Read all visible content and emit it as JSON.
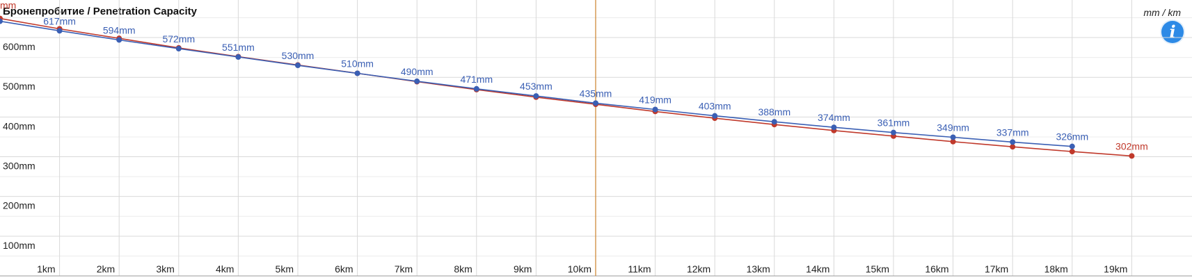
{
  "header": {
    "title": "Бронепробитие / Penetration Capacity",
    "unit": "mm / km"
  },
  "controls": {
    "info_icon": "info-icon",
    "info_glyph": "i"
  },
  "colors": {
    "blue": "#3a5fb4",
    "red": "#c0392b",
    "marker_line": "#d08a3a",
    "grid": "#d9d9d9",
    "grid_minor": "#ececec"
  },
  "chart_data": {
    "type": "line",
    "x_unit": "km",
    "y_unit": "mm",
    "x_ticks": [
      "1km",
      "2km",
      "3km",
      "4km",
      "5km",
      "6km",
      "7km",
      "8km",
      "9km",
      "10km",
      "11km",
      "12km",
      "13km",
      "14km",
      "15km",
      "16km",
      "17km",
      "18km",
      "19km"
    ],
    "y_ticks": [
      "100mm",
      "200mm",
      "300mm",
      "400mm",
      "500mm",
      "600mm"
    ],
    "xlim": [
      0,
      20
    ],
    "ylim": [
      0,
      700
    ],
    "grid": true,
    "vertical_marker_x": 10,
    "series": [
      {
        "color": "#3a5fb4",
        "x": [
          0,
          1,
          2,
          3,
          4,
          5,
          6,
          7,
          8,
          9,
          10,
          11,
          12,
          13,
          14,
          15,
          16,
          17,
          18
        ],
        "values": [
          641,
          617,
          594,
          572,
          551,
          530,
          510,
          490,
          471,
          453,
          435,
          419,
          403,
          388,
          374,
          361,
          349,
          337,
          326
        ],
        "labels": [
          "",
          "617mm",
          "594mm",
          "572mm",
          "551mm",
          "530mm",
          "510mm",
          "490mm",
          "471mm",
          "453mm",
          "435mm",
          "419mm",
          "403mm",
          "388mm",
          "374mm",
          "361mm",
          "349mm",
          "337mm",
          "326mm"
        ]
      },
      {
        "color": "#c0392b",
        "x": [
          0,
          1,
          2,
          3,
          4,
          5,
          6,
          7,
          8,
          9,
          10,
          11,
          12,
          13,
          14,
          15,
          16,
          17,
          18,
          19
        ],
        "values": [
          648,
          622,
          598,
          574,
          552,
          531,
          510,
          489,
          469,
          450,
          432,
          414,
          397,
          381,
          366,
          352,
          338,
          325,
          313,
          302
        ],
        "labels": [
          "mm",
          "",
          "",
          "",
          "",
          "",
          "",
          "",
          "",
          "",
          "",
          "",
          "",
          "",
          "",
          "",
          "",
          "",
          "",
          "302mm"
        ]
      }
    ]
  }
}
